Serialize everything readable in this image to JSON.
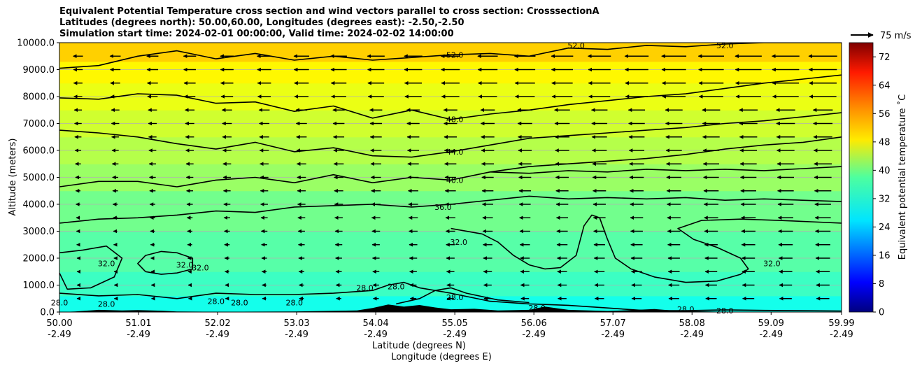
{
  "chart_data": {
    "type": "heatmap",
    "title_lines": [
      "Equivalent Potential Temperature cross section and wind vectors parallel to cross section: CrosssectionA",
      "Latitudes (degrees north): 50.00,60.00, Longitudes (degrees east): -2.50,-2.50",
      "Simulation start time: 2024-02-01 00:00:00, Valid time: 2024-02-02 14:00:00"
    ],
    "ylabel": "Altitude (meters)",
    "xlabel_1": "Latitude (degrees N)",
    "xlabel_2": "Longitude (degrees E)",
    "ylim": [
      0,
      10000
    ],
    "xlim": [
      50.0,
      59.99
    ],
    "y_ticks": [
      {
        "value": 0,
        "label": "0.0"
      },
      {
        "value": 1000,
        "label": "1000.0"
      },
      {
        "value": 2000,
        "label": "2000.0"
      },
      {
        "value": 3000,
        "label": "3000.0"
      },
      {
        "value": 4000,
        "label": "4000.0"
      },
      {
        "value": 5000,
        "label": "5000.0"
      },
      {
        "value": 6000,
        "label": "6000.0"
      },
      {
        "value": 7000,
        "label": "7000.0"
      },
      {
        "value": 8000,
        "label": "8000.0"
      },
      {
        "value": 9000,
        "label": "9000.0"
      },
      {
        "value": 10000,
        "label": "10000.0"
      }
    ],
    "x_ticks": [
      {
        "lat": 50.0,
        "lat_label": "50.00",
        "lon_label": "-2.49"
      },
      {
        "lat": 51.01,
        "lat_label": "51.01",
        "lon_label": "-2.49"
      },
      {
        "lat": 52.02,
        "lat_label": "52.02",
        "lon_label": "-2.49"
      },
      {
        "lat": 53.03,
        "lat_label": "53.03",
        "lon_label": "-2.49"
      },
      {
        "lat": 54.04,
        "lat_label": "54.04",
        "lon_label": "-2.49"
      },
      {
        "lat": 55.05,
        "lat_label": "55.05",
        "lon_label": "-2.49"
      },
      {
        "lat": 56.06,
        "lat_label": "56.06",
        "lon_label": "-2.49"
      },
      {
        "lat": 57.07,
        "lat_label": "57.07",
        "lon_label": "-2.49"
      },
      {
        "lat": 58.08,
        "lat_label": "58.08",
        "lon_label": "-2.49"
      },
      {
        "lat": 59.09,
        "lat_label": "59.09",
        "lon_label": "-2.49"
      },
      {
        "lat": 59.99,
        "lat_label": "59.99",
        "lon_label": "-2.49"
      }
    ],
    "colorbar": {
      "label": "Equivalent potential temperature ˚C",
      "min": 0,
      "max": 76,
      "ticks": [
        {
          "value": 0,
          "label": "0"
        },
        {
          "value": 8,
          "label": "8"
        },
        {
          "value": 16,
          "label": "16"
        },
        {
          "value": 24,
          "label": "24"
        },
        {
          "value": 32,
          "label": "32"
        },
        {
          "value": 40,
          "label": "40"
        },
        {
          "value": 48,
          "label": "48"
        },
        {
          "value": 56,
          "label": "56"
        },
        {
          "value": 64,
          "label": "64"
        },
        {
          "value": 72,
          "label": "72"
        }
      ]
    },
    "wind_key": {
      "label": "75 m/s",
      "speed": 75
    },
    "background_layers": [
      {
        "altitude_top": 600,
        "theta": 30
      },
      {
        "altitude_top": 1500,
        "theta": 33
      },
      {
        "altitude_top": 3000,
        "theta": 35
      },
      {
        "altitude_top": 4500,
        "theta": 37
      },
      {
        "altitude_top": 5500,
        "theta": 40
      },
      {
        "altitude_top": 6500,
        "theta": 42
      },
      {
        "altitude_top": 7500,
        "theta": 44
      },
      {
        "altitude_top": 8500,
        "theta": 46
      },
      {
        "altitude_top": 9300,
        "theta": 48
      },
      {
        "altitude_top": 10000,
        "theta": 51
      }
    ],
    "contours": [
      {
        "level": 52.0,
        "label": "52.0",
        "points": [
          [
            50.0,
            9050
          ],
          [
            50.5,
            9150
          ],
          [
            51.0,
            9500
          ],
          [
            51.5,
            9700
          ],
          [
            52.0,
            9400
          ],
          [
            52.5,
            9600
          ],
          [
            53.0,
            9350
          ],
          [
            53.5,
            9500
          ],
          [
            54.0,
            9350
          ],
          [
            54.5,
            9450
          ],
          [
            55.0,
            9550
          ],
          [
            55.5,
            9600
          ],
          [
            56.0,
            9500
          ],
          [
            56.5,
            9800
          ],
          [
            57.0,
            9750
          ],
          [
            57.5,
            9900
          ],
          [
            58.0,
            9850
          ],
          [
            58.5,
            9950
          ],
          [
            59.0,
            10000
          ],
          [
            59.99,
            10000
          ]
        ]
      },
      {
        "level": 48.0,
        "label": "48.0",
        "points": [
          [
            50.0,
            7950
          ],
          [
            50.5,
            7900
          ],
          [
            51.0,
            8100
          ],
          [
            51.5,
            8050
          ],
          [
            52.0,
            7750
          ],
          [
            52.5,
            7800
          ],
          [
            53.0,
            7450
          ],
          [
            53.5,
            7650
          ],
          [
            54.0,
            7200
          ],
          [
            54.5,
            7500
          ],
          [
            55.0,
            7150
          ],
          [
            55.5,
            7350
          ],
          [
            56.0,
            7500
          ],
          [
            56.5,
            7700
          ],
          [
            57.0,
            7850
          ],
          [
            57.5,
            8000
          ],
          [
            58.0,
            8100
          ],
          [
            58.5,
            8300
          ],
          [
            59.0,
            8500
          ],
          [
            59.5,
            8650
          ],
          [
            59.99,
            8800
          ]
        ]
      },
      {
        "level": 44.0,
        "label": "44.0",
        "points": [
          [
            50.0,
            6750
          ],
          [
            50.5,
            6650
          ],
          [
            51.0,
            6500
          ],
          [
            51.5,
            6250
          ],
          [
            52.0,
            6050
          ],
          [
            52.5,
            6300
          ],
          [
            53.0,
            5950
          ],
          [
            53.5,
            6100
          ],
          [
            54.0,
            5800
          ],
          [
            54.5,
            5750
          ],
          [
            55.0,
            5950
          ],
          [
            55.5,
            6200
          ],
          [
            56.0,
            6450
          ],
          [
            56.5,
            6550
          ],
          [
            57.0,
            6650
          ],
          [
            57.5,
            6750
          ],
          [
            58.0,
            6850
          ],
          [
            58.5,
            7000
          ],
          [
            59.0,
            7100
          ],
          [
            59.5,
            7250
          ],
          [
            59.99,
            7400
          ]
        ]
      },
      {
        "level": 40.0,
        "label": "40.0",
        "points": [
          [
            50.0,
            4650
          ],
          [
            50.5,
            4850
          ],
          [
            51.0,
            4850
          ],
          [
            51.5,
            4650
          ],
          [
            52.0,
            4900
          ],
          [
            52.5,
            5000
          ],
          [
            53.0,
            4800
          ],
          [
            53.5,
            5100
          ],
          [
            54.0,
            4800
          ],
          [
            54.5,
            5000
          ],
          [
            55.0,
            4900
          ],
          [
            55.5,
            5200
          ],
          [
            56.0,
            5400
          ],
          [
            56.5,
            5500
          ],
          [
            57.0,
            5600
          ],
          [
            57.5,
            5700
          ],
          [
            58.0,
            5850
          ],
          [
            58.5,
            6050
          ],
          [
            59.0,
            6200
          ],
          [
            59.5,
            6300
          ],
          [
            59.99,
            6500
          ]
        ]
      },
      {
        "level": 40.0,
        "label": "",
        "points": [
          [
            55.5,
            5200
          ],
          [
            56.0,
            5150
          ],
          [
            56.5,
            5250
          ],
          [
            57.0,
            5200
          ],
          [
            57.5,
            5300
          ],
          [
            58.0,
            5250
          ],
          [
            58.5,
            5300
          ],
          [
            59.0,
            5250
          ],
          [
            59.99,
            5400
          ]
        ]
      },
      {
        "level": 36.0,
        "label": "36.0",
        "points": [
          [
            50.0,
            3300
          ],
          [
            50.5,
            3450
          ],
          [
            51.0,
            3500
          ],
          [
            51.5,
            3600
          ],
          [
            52.0,
            3750
          ],
          [
            52.5,
            3700
          ],
          [
            53.0,
            3900
          ],
          [
            53.5,
            3950
          ],
          [
            54.0,
            4000
          ],
          [
            54.5,
            3900
          ],
          [
            55.0,
            4000
          ],
          [
            55.5,
            4150
          ],
          [
            56.0,
            4300
          ],
          [
            56.5,
            4200
          ],
          [
            57.0,
            4250
          ],
          [
            57.5,
            4200
          ],
          [
            58.0,
            4250
          ],
          [
            58.5,
            4150
          ],
          [
            59.0,
            4200
          ],
          [
            59.99,
            4100
          ]
        ]
      },
      {
        "level": 32.0,
        "label": "32.0",
        "points": [
          [
            55.0,
            3100
          ],
          [
            55.4,
            2900
          ],
          [
            55.6,
            2600
          ],
          [
            55.8,
            2100
          ],
          [
            56.0,
            1750
          ],
          [
            56.2,
            1600
          ],
          [
            56.4,
            1650
          ],
          [
            56.6,
            2100
          ],
          [
            56.7,
            3200
          ],
          [
            56.8,
            3600
          ],
          [
            56.9,
            3500
          ],
          [
            57.0,
            2700
          ],
          [
            57.1,
            2000
          ],
          [
            57.3,
            1600
          ],
          [
            57.6,
            1300
          ],
          [
            58.0,
            1100
          ],
          [
            58.4,
            1150
          ],
          [
            58.7,
            1400
          ],
          [
            58.8,
            1600
          ],
          [
            58.7,
            2000
          ],
          [
            58.4,
            2400
          ],
          [
            58.1,
            2700
          ],
          [
            57.9,
            3100
          ],
          [
            58.2,
            3400
          ],
          [
            58.7,
            3450
          ],
          [
            59.2,
            3400
          ],
          [
            59.6,
            3350
          ],
          [
            59.99,
            3300
          ]
        ]
      },
      {
        "level": 32.0,
        "label": "32.0",
        "points": [
          [
            50.0,
            2200
          ],
          [
            50.3,
            2300
          ],
          [
            50.6,
            2450
          ],
          [
            50.8,
            2000
          ],
          [
            50.7,
            1300
          ],
          [
            50.4,
            900
          ],
          [
            50.1,
            850
          ],
          [
            50.0,
            1450
          ]
        ]
      },
      {
        "level": 32.0,
        "label": "32.0",
        "points": [
          [
            51.1,
            1500
          ],
          [
            51.3,
            1400
          ],
          [
            51.5,
            1450
          ],
          [
            51.7,
            1600
          ],
          [
            51.7,
            2000
          ],
          [
            51.5,
            2200
          ],
          [
            51.3,
            2250
          ],
          [
            51.1,
            2100
          ],
          [
            51.0,
            1800
          ],
          [
            51.1,
            1500
          ]
        ]
      },
      {
        "level": 28.0,
        "label": "28.0",
        "points": [
          [
            50.0,
            700
          ],
          [
            50.5,
            600
          ],
          [
            51.0,
            650
          ],
          [
            51.5,
            500
          ],
          [
            52.0,
            700
          ],
          [
            52.5,
            650
          ],
          [
            53.0,
            650
          ],
          [
            53.5,
            700
          ],
          [
            54.0,
            800
          ],
          [
            54.2,
            1000
          ],
          [
            54.4,
            1100
          ],
          [
            54.6,
            900
          ],
          [
            55.0,
            700
          ],
          [
            55.5,
            400
          ],
          [
            56.0,
            300
          ],
          [
            56.5,
            250
          ],
          [
            57.0,
            150
          ],
          [
            57.5,
            50
          ],
          [
            58.0,
            50
          ],
          [
            58.5,
            80
          ],
          [
            59.0,
            60
          ],
          [
            59.99,
            40
          ]
        ]
      },
      {
        "level": 28.0,
        "label": "",
        "points": [
          [
            54.3,
            300
          ],
          [
            54.6,
            500
          ],
          [
            54.8,
            800
          ],
          [
            55.0,
            900
          ],
          [
            55.2,
            700
          ],
          [
            55.6,
            450
          ],
          [
            56.0,
            350
          ]
        ]
      }
    ],
    "contour_labels": [
      {
        "text": "52.0",
        "lat": 55.05,
        "alt": 9550
      },
      {
        "text": "52.0",
        "lat": 56.6,
        "alt": 9900
      },
      {
        "text": "52.0",
        "lat": 58.5,
        "alt": 9900
      },
      {
        "text": "48.0",
        "lat": 55.05,
        "alt": 7150
      },
      {
        "text": "44.0",
        "lat": 55.05,
        "alt": 5950
      },
      {
        "text": "40.0",
        "lat": 55.05,
        "alt": 4900
      },
      {
        "text": "36.0",
        "lat": 54.9,
        "alt": 3900
      },
      {
        "text": "32.0",
        "lat": 55.1,
        "alt": 2600
      },
      {
        "text": "32.0",
        "lat": 50.6,
        "alt": 1800
      },
      {
        "text": "32.0",
        "lat": 51.6,
        "alt": 1750
      },
      {
        "text": "32.0",
        "lat": 51.8,
        "alt": 1650
      },
      {
        "text": "32.0",
        "lat": 59.1,
        "alt": 1800
      },
      {
        "text": "28.0",
        "lat": 55.05,
        "alt": 550
      },
      {
        "text": "28.0",
        "lat": 53.9,
        "alt": 900
      },
      {
        "text": "28.0",
        "lat": 54.3,
        "alt": 950
      },
      {
        "text": "28.0",
        "lat": 56.1,
        "alt": 150
      },
      {
        "text": "28.0",
        "lat": 58.0,
        "alt": 100
      },
      {
        "text": "28.0",
        "lat": 58.5,
        "alt": 50
      },
      {
        "text": "28.0",
        "lat": 50.0,
        "alt": 350
      },
      {
        "text": "28.0",
        "lat": 50.6,
        "alt": 300
      },
      {
        "text": "28.0",
        "lat": 52.0,
        "alt": 400
      },
      {
        "text": "28.0",
        "lat": 52.3,
        "alt": 350
      },
      {
        "text": "28.0",
        "lat": 53.0,
        "alt": 350
      }
    ],
    "terrain": [
      [
        50.0,
        0
      ],
      [
        50.2,
        20
      ],
      [
        50.5,
        80
      ],
      [
        50.8,
        60
      ],
      [
        51.0,
        70
      ],
      [
        51.3,
        50
      ],
      [
        51.5,
        20
      ],
      [
        52.0,
        10
      ],
      [
        53.0,
        20
      ],
      [
        53.8,
        60
      ],
      [
        54.0,
        150
      ],
      [
        54.2,
        280
      ],
      [
        54.4,
        200
      ],
      [
        54.6,
        260
      ],
      [
        54.8,
        170
      ],
      [
        55.0,
        100
      ],
      [
        55.3,
        120
      ],
      [
        55.6,
        60
      ],
      [
        56.0,
        80
      ],
      [
        56.2,
        200
      ],
      [
        56.5,
        80
      ],
      [
        57.0,
        40
      ],
      [
        57.3,
        70
      ],
      [
        57.6,
        110
      ],
      [
        57.9,
        40
      ],
      [
        58.5,
        10
      ],
      [
        59.99,
        0
      ]
    ]
  }
}
